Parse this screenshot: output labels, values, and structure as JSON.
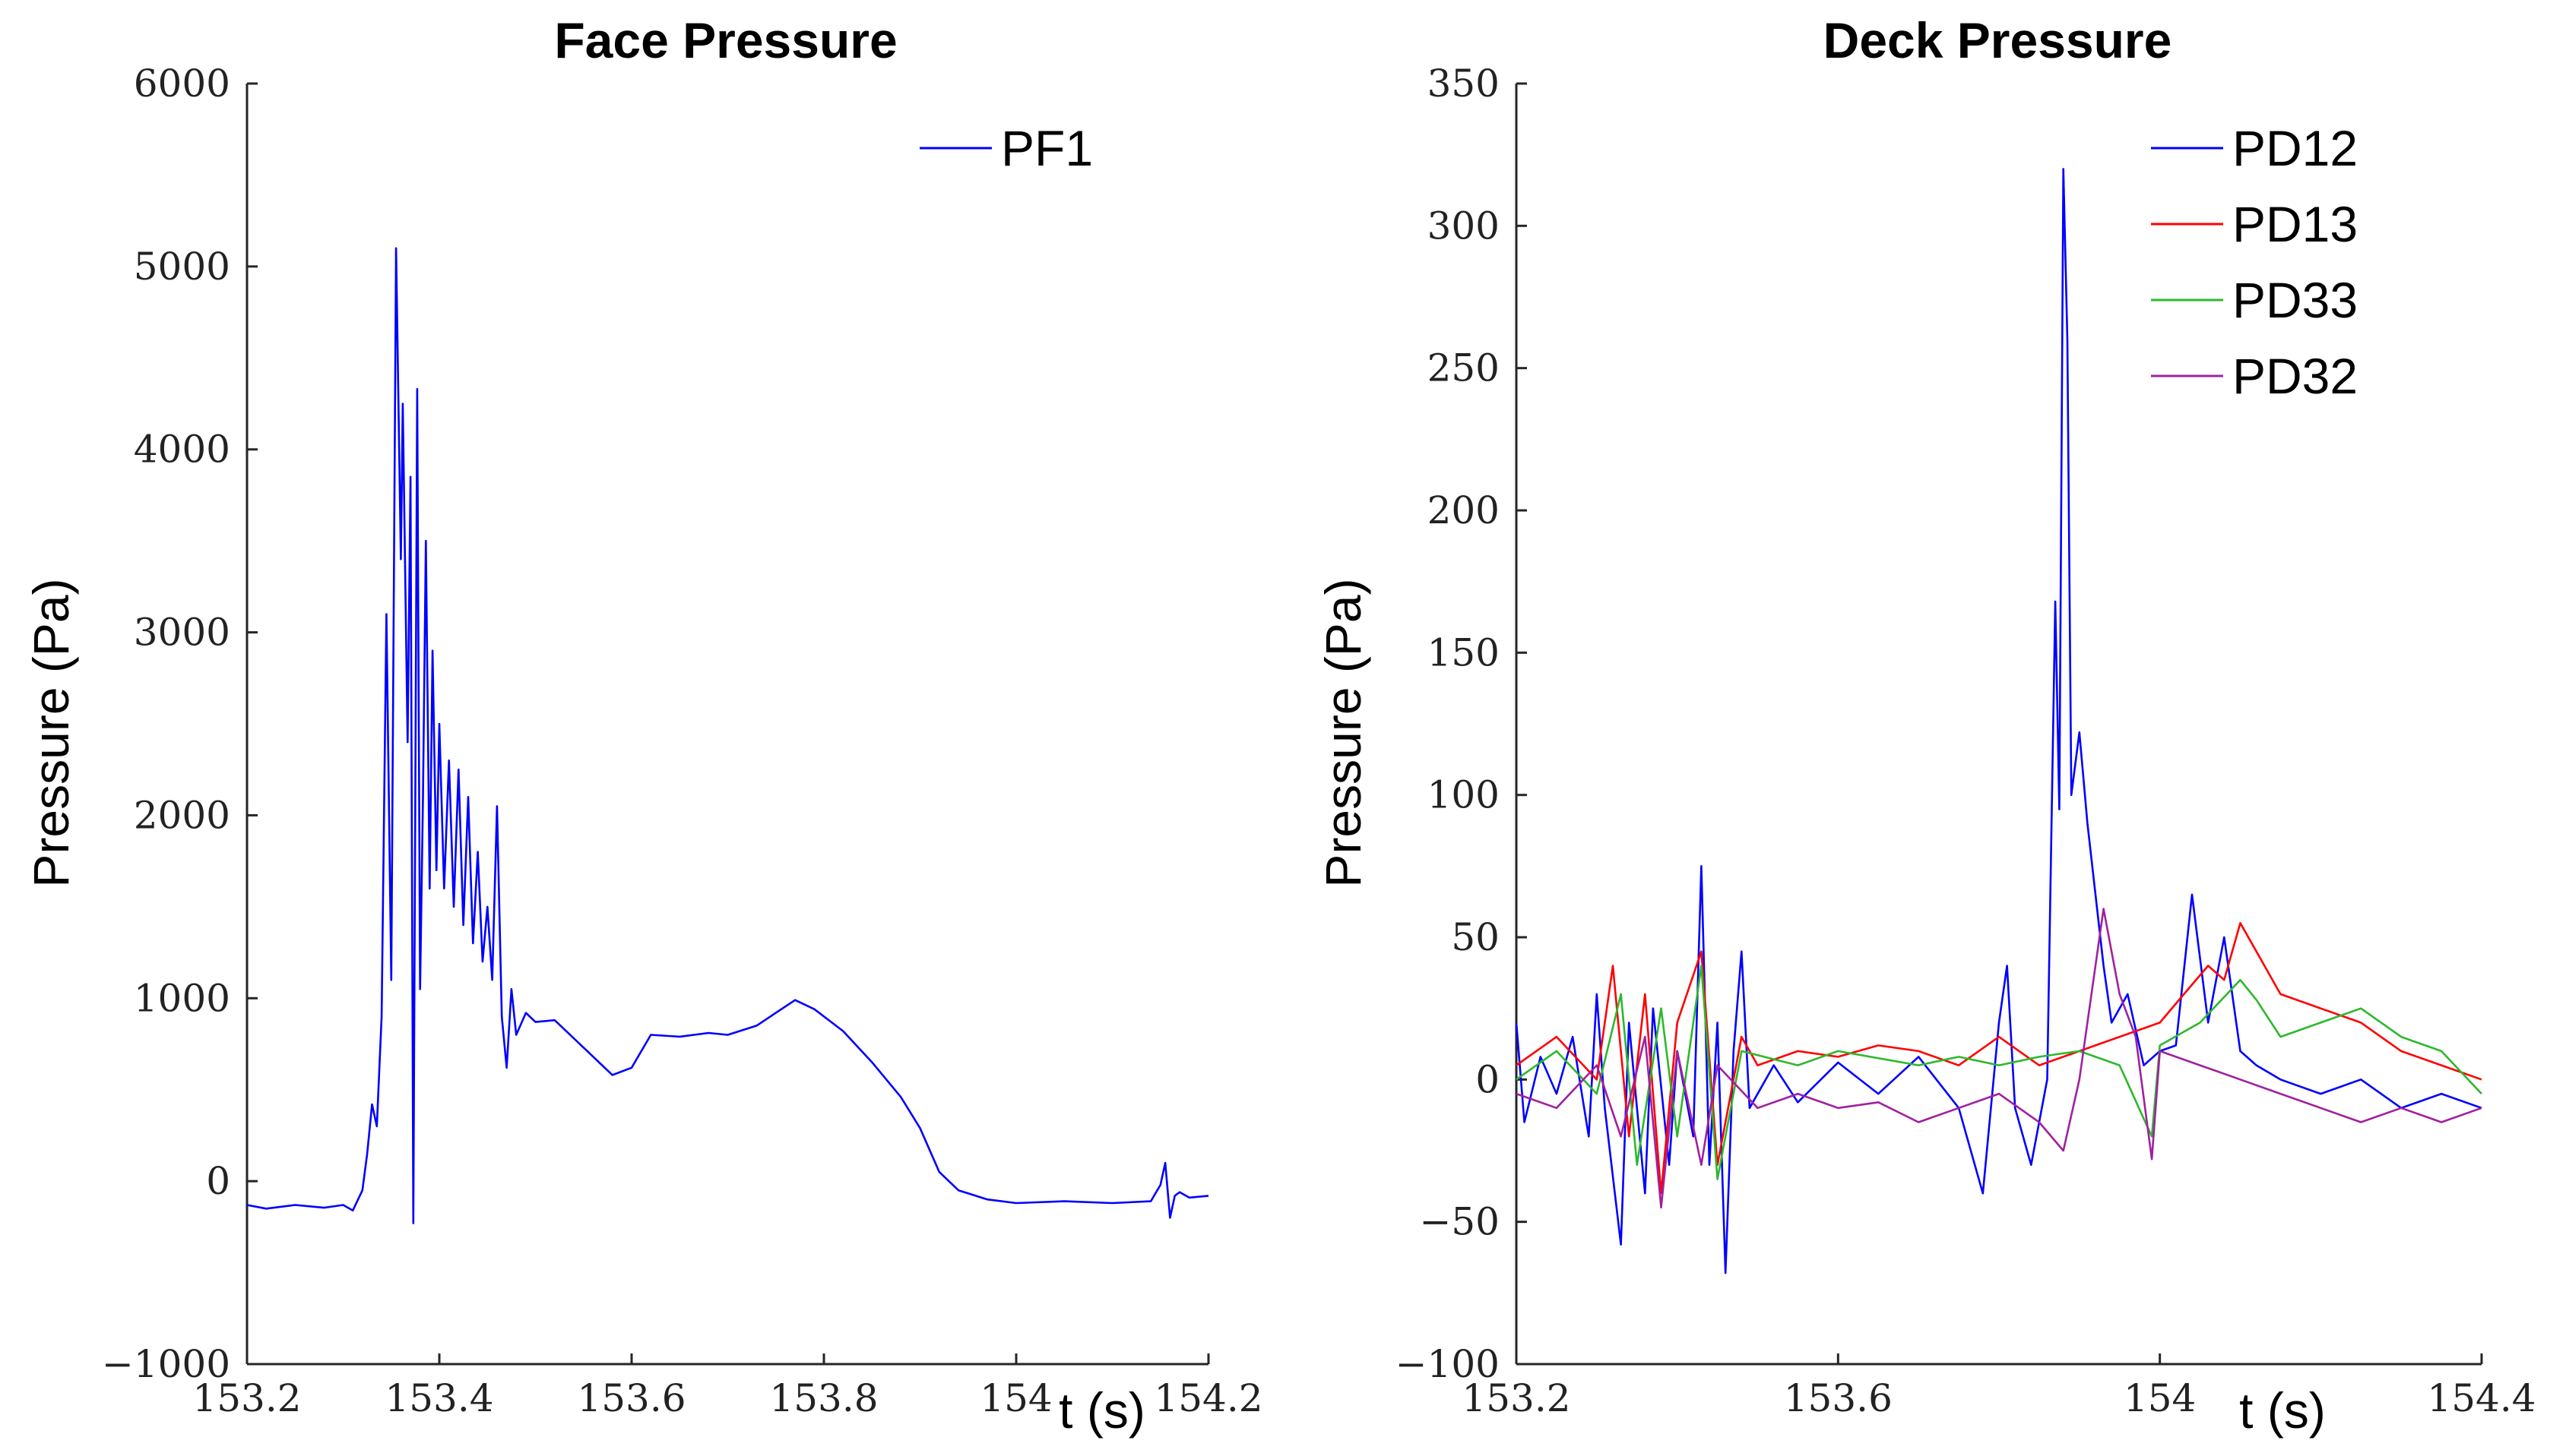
{
  "chart_data": [
    {
      "type": "line",
      "title": "Face Pressure",
      "xlabel": "t (s)",
      "ylabel": "Pressure (Pa)",
      "xlim": [
        153.2,
        154.2
      ],
      "ylim": [
        -1000,
        6000
      ],
      "xticks": [
        153.2,
        153.4,
        153.6,
        153.8,
        154,
        154.2
      ],
      "xtick_labels": [
        "153.2",
        "153.4",
        "153.6",
        "153.8",
        "154",
        "154.2"
      ],
      "yticks": [
        -1000,
        0,
        1000,
        2000,
        3000,
        4000,
        5000,
        6000
      ],
      "ytick_labels": [
        "−1000",
        "0",
        "1000",
        "2000",
        "3000",
        "4000",
        "5000",
        "6000"
      ],
      "grid": false,
      "legend_position": "top-right",
      "series": [
        {
          "name": "PF1",
          "color": "#0000ff",
          "points": [
            [
              153.2,
              -130
            ],
            [
              153.22,
              -150
            ],
            [
              153.25,
              -130
            ],
            [
              153.28,
              -145
            ],
            [
              153.3,
              -130
            ],
            [
              153.31,
              -160
            ],
            [
              153.32,
              -50
            ],
            [
              153.325,
              150
            ],
            [
              153.33,
              420
            ],
            [
              153.335,
              300
            ],
            [
              153.34,
              900
            ],
            [
              153.345,
              3100
            ],
            [
              153.35,
              1100
            ],
            [
              153.355,
              5100
            ],
            [
              153.36,
              3400
            ],
            [
              153.362,
              4250
            ],
            [
              153.367,
              2400
            ],
            [
              153.37,
              3850
            ],
            [
              153.373,
              -230
            ],
            [
              153.377,
              4330
            ],
            [
              153.38,
              1050
            ],
            [
              153.383,
              2100
            ],
            [
              153.386,
              3500
            ],
            [
              153.39,
              1600
            ],
            [
              153.393,
              2900
            ],
            [
              153.397,
              1700
            ],
            [
              153.4,
              2500
            ],
            [
              153.405,
              1600
            ],
            [
              153.41,
              2300
            ],
            [
              153.415,
              1500
            ],
            [
              153.42,
              2250
            ],
            [
              153.425,
              1400
            ],
            [
              153.43,
              2100
            ],
            [
              153.435,
              1300
            ],
            [
              153.44,
              1800
            ],
            [
              153.445,
              1200
            ],
            [
              153.45,
              1500
            ],
            [
              153.455,
              1100
            ],
            [
              153.46,
              2050
            ],
            [
              153.465,
              900
            ],
            [
              153.47,
              620
            ],
            [
              153.475,
              1050
            ],
            [
              153.48,
              800
            ],
            [
              153.49,
              920
            ],
            [
              153.5,
              870
            ],
            [
              153.52,
              880
            ],
            [
              153.55,
              730
            ],
            [
              153.58,
              580
            ],
            [
              153.6,
              620
            ],
            [
              153.62,
              800
            ],
            [
              153.65,
              790
            ],
            [
              153.68,
              810
            ],
            [
              153.7,
              800
            ],
            [
              153.73,
              850
            ],
            [
              153.77,
              990
            ],
            [
              153.79,
              940
            ],
            [
              153.82,
              820
            ],
            [
              153.85,
              650
            ],
            [
              153.88,
              460
            ],
            [
              153.9,
              290
            ],
            [
              153.92,
              50
            ],
            [
              153.94,
              -50
            ],
            [
              153.97,
              -100
            ],
            [
              154.0,
              -120
            ],
            [
              154.05,
              -110
            ],
            [
              154.1,
              -120
            ],
            [
              154.14,
              -110
            ],
            [
              154.15,
              -20
            ],
            [
              154.155,
              100
            ],
            [
              154.16,
              -200
            ],
            [
              154.165,
              -80
            ],
            [
              154.17,
              -60
            ],
            [
              154.18,
              -90
            ],
            [
              154.2,
              -80
            ]
          ]
        }
      ]
    },
    {
      "type": "line",
      "title": "Deck Pressure",
      "xlabel": "t (s)",
      "ylabel": "Pressure (Pa)",
      "xlim": [
        153.2,
        154.4
      ],
      "ylim": [
        -100,
        350
      ],
      "xticks": [
        153.2,
        153.6,
        154,
        154.4
      ],
      "xtick_labels": [
        "153.2",
        "153.6",
        "154",
        "154.4"
      ],
      "yticks": [
        -100,
        -50,
        0,
        50,
        100,
        150,
        200,
        250,
        300,
        350
      ],
      "ytick_labels": [
        "−100",
        "−50",
        "0",
        "50",
        "100",
        "150",
        "200",
        "250",
        "300",
        "350"
      ],
      "grid": false,
      "legend_position": "top-right",
      "series": [
        {
          "name": "PD12",
          "color": "#0000ff",
          "points": [
            [
              153.2,
              20
            ],
            [
              153.21,
              -15
            ],
            [
              153.23,
              8
            ],
            [
              153.25,
              -5
            ],
            [
              153.27,
              15
            ],
            [
              153.29,
              -20
            ],
            [
              153.3,
              30
            ],
            [
              153.31,
              -10
            ],
            [
              153.33,
              -58
            ],
            [
              153.34,
              20
            ],
            [
              153.36,
              -40
            ],
            [
              153.37,
              25
            ],
            [
              153.39,
              -30
            ],
            [
              153.4,
              10
            ],
            [
              153.42,
              -20
            ],
            [
              153.43,
              75
            ],
            [
              153.44,
              -30
            ],
            [
              153.45,
              20
            ],
            [
              153.46,
              -68
            ],
            [
              153.47,
              10
            ],
            [
              153.48,
              45
            ],
            [
              153.49,
              -10
            ],
            [
              153.52,
              5
            ],
            [
              153.55,
              -8
            ],
            [
              153.6,
              6
            ],
            [
              153.65,
              -5
            ],
            [
              153.7,
              8
            ],
            [
              153.75,
              -10
            ],
            [
              153.78,
              -40
            ],
            [
              153.8,
              20
            ],
            [
              153.81,
              40
            ],
            [
              153.82,
              -10
            ],
            [
              153.84,
              -30
            ],
            [
              153.86,
              0
            ],
            [
              153.87,
              168
            ],
            [
              153.875,
              95
            ],
            [
              153.88,
              320
            ],
            [
              153.885,
              260
            ],
            [
              153.89,
              100
            ],
            [
              153.9,
              122
            ],
            [
              153.91,
              90
            ],
            [
              153.92,
              65
            ],
            [
              153.93,
              40
            ],
            [
              153.94,
              20
            ],
            [
              153.96,
              30
            ],
            [
              153.98,
              5
            ],
            [
              154.0,
              10
            ],
            [
              154.02,
              12
            ],
            [
              154.04,
              65
            ],
            [
              154.06,
              20
            ],
            [
              154.08,
              50
            ],
            [
              154.1,
              10
            ],
            [
              154.12,
              5
            ],
            [
              154.15,
              0
            ],
            [
              154.2,
              -5
            ],
            [
              154.25,
              0
            ],
            [
              154.3,
              -10
            ],
            [
              154.35,
              -5
            ],
            [
              154.4,
              -10
            ]
          ]
        },
        {
          "name": "PD13",
          "color": "#ff0000",
          "points": [
            [
              153.2,
              5
            ],
            [
              153.25,
              15
            ],
            [
              153.3,
              0
            ],
            [
              153.32,
              40
            ],
            [
              153.34,
              -20
            ],
            [
              153.36,
              30
            ],
            [
              153.38,
              -40
            ],
            [
              153.4,
              20
            ],
            [
              153.43,
              45
            ],
            [
              153.45,
              -30
            ],
            [
              153.48,
              15
            ],
            [
              153.5,
              5
            ],
            [
              153.55,
              10
            ],
            [
              153.6,
              8
            ],
            [
              153.65,
              12
            ],
            [
              153.7,
              10
            ],
            [
              153.75,
              5
            ],
            [
              153.8,
              15
            ],
            [
              153.85,
              5
            ],
            [
              153.9,
              10
            ],
            [
              153.95,
              15
            ],
            [
              154.0,
              20
            ],
            [
              154.03,
              30
            ],
            [
              154.06,
              40
            ],
            [
              154.08,
              35
            ],
            [
              154.1,
              55
            ],
            [
              154.12,
              45
            ],
            [
              154.15,
              30
            ],
            [
              154.2,
              25
            ],
            [
              154.25,
              20
            ],
            [
              154.3,
              10
            ],
            [
              154.35,
              5
            ],
            [
              154.4,
              0
            ]
          ]
        },
        {
          "name": "PD33",
          "color": "#2db82d",
          "points": [
            [
              153.2,
              0
            ],
            [
              153.25,
              10
            ],
            [
              153.3,
              -5
            ],
            [
              153.33,
              30
            ],
            [
              153.35,
              -30
            ],
            [
              153.38,
              25
            ],
            [
              153.4,
              -20
            ],
            [
              153.43,
              40
            ],
            [
              153.45,
              -35
            ],
            [
              153.48,
              10
            ],
            [
              153.55,
              5
            ],
            [
              153.6,
              10
            ],
            [
              153.7,
              5
            ],
            [
              153.75,
              8
            ],
            [
              153.8,
              5
            ],
            [
              153.85,
              8
            ],
            [
              153.9,
              10
            ],
            [
              153.95,
              5
            ],
            [
              153.99,
              -20
            ],
            [
              154.0,
              12
            ],
            [
              154.05,
              20
            ],
            [
              154.1,
              35
            ],
            [
              154.12,
              28
            ],
            [
              154.15,
              15
            ],
            [
              154.2,
              20
            ],
            [
              154.25,
              25
            ],
            [
              154.3,
              15
            ],
            [
              154.35,
              10
            ],
            [
              154.4,
              -5
            ]
          ]
        },
        {
          "name": "PD32",
          "color": "#a020a0",
          "points": [
            [
              153.2,
              -5
            ],
            [
              153.25,
              -10
            ],
            [
              153.3,
              5
            ],
            [
              153.33,
              -20
            ],
            [
              153.36,
              15
            ],
            [
              153.38,
              -45
            ],
            [
              153.4,
              10
            ],
            [
              153.43,
              -30
            ],
            [
              153.45,
              5
            ],
            [
              153.5,
              -10
            ],
            [
              153.55,
              -5
            ],
            [
              153.6,
              -10
            ],
            [
              153.65,
              -8
            ],
            [
              153.7,
              -15
            ],
            [
              153.75,
              -10
            ],
            [
              153.8,
              -5
            ],
            [
              153.85,
              -15
            ],
            [
              153.88,
              -25
            ],
            [
              153.9,
              0
            ],
            [
              153.93,
              60
            ],
            [
              153.95,
              30
            ],
            [
              153.97,
              15
            ],
            [
              153.99,
              -28
            ],
            [
              154.0,
              10
            ],
            [
              154.05,
              5
            ],
            [
              154.1,
              0
            ],
            [
              154.15,
              -5
            ],
            [
              154.2,
              -10
            ],
            [
              154.25,
              -15
            ],
            [
              154.3,
              -10
            ],
            [
              154.35,
              -15
            ],
            [
              154.4,
              -10
            ]
          ]
        }
      ]
    }
  ]
}
